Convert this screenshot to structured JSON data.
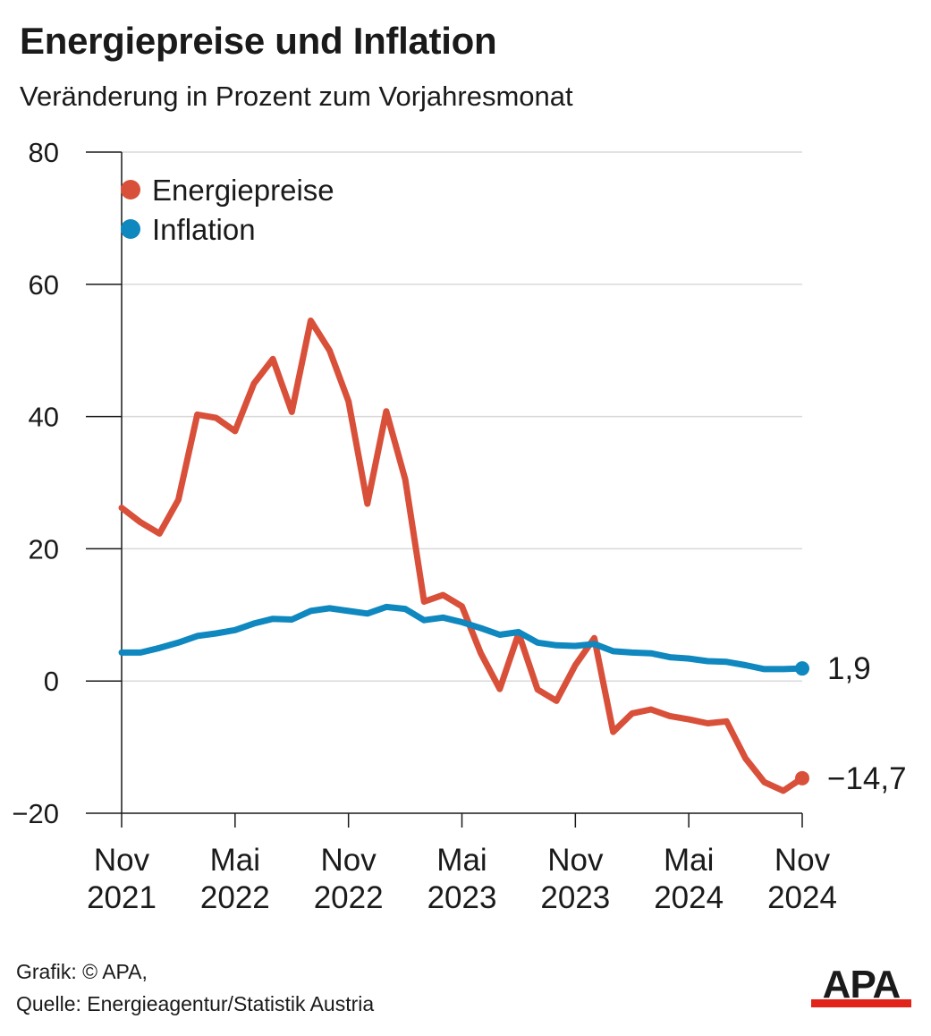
{
  "title": "Energiepreise und Inflation",
  "subtitle": "Veränderung in Prozent zum Vorjahresmonat",
  "footer": {
    "credit": "Grafik: © APA,",
    "source": "Quelle: Energieagentur/Statistik Austria"
  },
  "logo_text": "APA",
  "colors": {
    "energy": "#d9503a",
    "inflation": "#0f87bf",
    "grid": "#d9d9d9",
    "axis": "#1a1a1a",
    "logo_red": "#e2231a"
  },
  "chart_data": {
    "type": "line",
    "x": [
      "2021-11",
      "2021-12",
      "2022-01",
      "2022-02",
      "2022-03",
      "2022-04",
      "2022-05",
      "2022-06",
      "2022-07",
      "2022-08",
      "2022-09",
      "2022-10",
      "2022-11",
      "2022-12",
      "2023-01",
      "2023-02",
      "2023-03",
      "2023-04",
      "2023-05",
      "2023-06",
      "2023-07",
      "2023-08",
      "2023-09",
      "2023-10",
      "2023-11",
      "2023-12",
      "2024-01",
      "2024-02",
      "2024-03",
      "2024-04",
      "2024-05",
      "2024-06",
      "2024-07",
      "2024-08",
      "2024-09",
      "2024-10",
      "2024-11"
    ],
    "x_tick_labels": [
      {
        "month": "Nov",
        "year": "2021",
        "x": "2021-11"
      },
      {
        "month": "Mai",
        "year": "2022",
        "x": "2022-05"
      },
      {
        "month": "Nov",
        "year": "2022",
        "x": "2022-11"
      },
      {
        "month": "Mai",
        "year": "2023",
        "x": "2023-05"
      },
      {
        "month": "Nov",
        "year": "2023",
        "x": "2023-11"
      },
      {
        "month": "Mai",
        "year": "2024",
        "x": "2024-05"
      },
      {
        "month": "Nov",
        "year": "2024",
        "x": "2024-11"
      }
    ],
    "y_ticks": [
      "80",
      "60",
      "40",
      "20",
      "0",
      "−20"
    ],
    "y_tick_values": [
      80,
      60,
      40,
      20,
      0,
      -20
    ],
    "ylim": [
      -20,
      80
    ],
    "grid": true,
    "legend_position": "top-left",
    "series": [
      {
        "name": "Energiepreise",
        "color": "#d9503a",
        "end_label": "−14,7",
        "values": [
          26.2,
          24.0,
          22.3,
          27.4,
          40.3,
          39.8,
          37.8,
          45.0,
          48.7,
          40.7,
          54.5,
          50.0,
          42.3,
          26.8,
          40.8,
          30.5,
          12.0,
          13.0,
          11.3,
          4.2,
          -1.2,
          7.2,
          -1.3,
          -3.0,
          2.4,
          6.5,
          -7.7,
          -4.9,
          -4.3,
          -5.3,
          -5.8,
          -6.4,
          -6.1,
          -11.7,
          -15.3,
          -16.6,
          -14.7
        ]
      },
      {
        "name": "Inflation",
        "color": "#0f87bf",
        "end_label": "1,9",
        "values": [
          4.3,
          4.3,
          5.0,
          5.8,
          6.8,
          7.2,
          7.7,
          8.7,
          9.4,
          9.3,
          10.6,
          11.0,
          10.6,
          10.2,
          11.2,
          10.9,
          9.2,
          9.6,
          8.9,
          8.0,
          7.0,
          7.4,
          5.8,
          5.4,
          5.3,
          5.6,
          4.5,
          4.3,
          4.2,
          3.6,
          3.4,
          3.0,
          2.9,
          2.4,
          1.8,
          1.8,
          1.9
        ]
      }
    ]
  }
}
